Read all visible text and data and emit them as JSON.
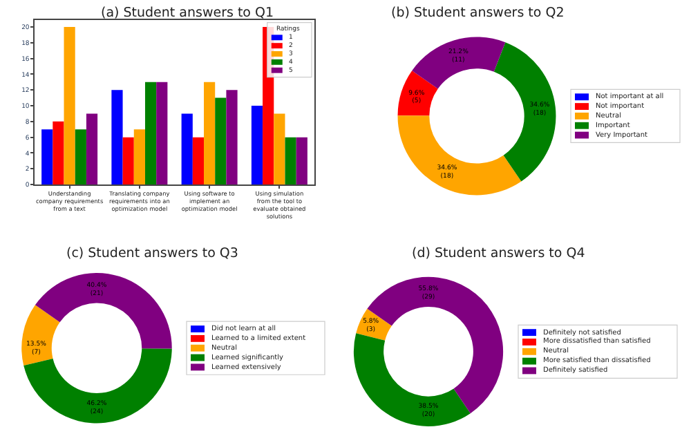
{
  "chart_data": [
    {
      "type": "bar",
      "title": "(a) Student answers to Q1",
      "legend_title": "Ratings",
      "legend": "top right",
      "grid": false,
      "categories": [
        "Understanding company requirements from a text",
        "Translating company requirements into an optimization model",
        "Using software to implement an optimization model",
        "Using simulation from the tool to evaluate obtained solutions"
      ],
      "series": [
        {
          "name": "1",
          "color": "#0000ff",
          "values": [
            7,
            12,
            9,
            10
          ]
        },
        {
          "name": "2",
          "color": "#ff0000",
          "values": [
            8,
            6,
            6,
            20
          ]
        },
        {
          "name": "3",
          "color": "#ffa500",
          "values": [
            20,
            7,
            13,
            9
          ]
        },
        {
          "name": "4",
          "color": "#008000",
          "values": [
            7,
            13,
            11,
            6
          ]
        },
        {
          "name": "5",
          "color": "#800080",
          "values": [
            9,
            13,
            12,
            6
          ]
        }
      ],
      "ylim": [
        0,
        20.9
      ],
      "yticks": [
        0,
        2,
        4,
        6,
        8,
        10,
        12,
        14,
        16,
        18,
        20
      ]
    },
    {
      "type": "donut",
      "title": "(b) Student answers to Q2",
      "legend": "right",
      "categories": [
        "Not important at all",
        "Not important",
        "Neutral",
        "Important",
        "Very Important"
      ],
      "values": [
        0,
        5,
        18,
        18,
        11
      ],
      "value_labels": [
        null,
        "9.6%\n(5)",
        "34.6%\n(18)",
        "34.6%\n(18)",
        "21.2%\n(11)"
      ],
      "colors": [
        "#0000ff",
        "#ff0000",
        "#ffa500",
        "#008000",
        "#800080"
      ]
    },
    {
      "type": "donut",
      "title": "(c) Student answers to Q3",
      "legend": "right",
      "categories": [
        "Did not learn at all",
        "Learned to a limited extent",
        "Neutral",
        "Learned significantly",
        "Learned extensively"
      ],
      "values": [
        0,
        0,
        7,
        24,
        21
      ],
      "value_labels": [
        null,
        null,
        "13.5%\n(7)",
        "46.2%\n(24)",
        "40.4%\n(21)"
      ],
      "colors": [
        "#0000ff",
        "#ff0000",
        "#ffa500",
        "#008000",
        "#800080"
      ]
    },
    {
      "type": "donut",
      "title": "(d) Student answers to Q4",
      "legend": "right",
      "categories": [
        "Definitely not satisfied",
        "More dissatisfied than satisfied",
        "Neutral",
        "More satisfied than dissatisfied",
        "Definitely satisfied"
      ],
      "values": [
        0,
        0,
        3,
        20,
        29
      ],
      "value_labels": [
        null,
        null,
        "5.8%\n(3)",
        "38.5%\n(20)",
        "55.8%\n(29)"
      ],
      "colors": [
        "#0000ff",
        "#ff0000",
        "#ffa500",
        "#008000",
        "#800080"
      ]
    }
  ]
}
